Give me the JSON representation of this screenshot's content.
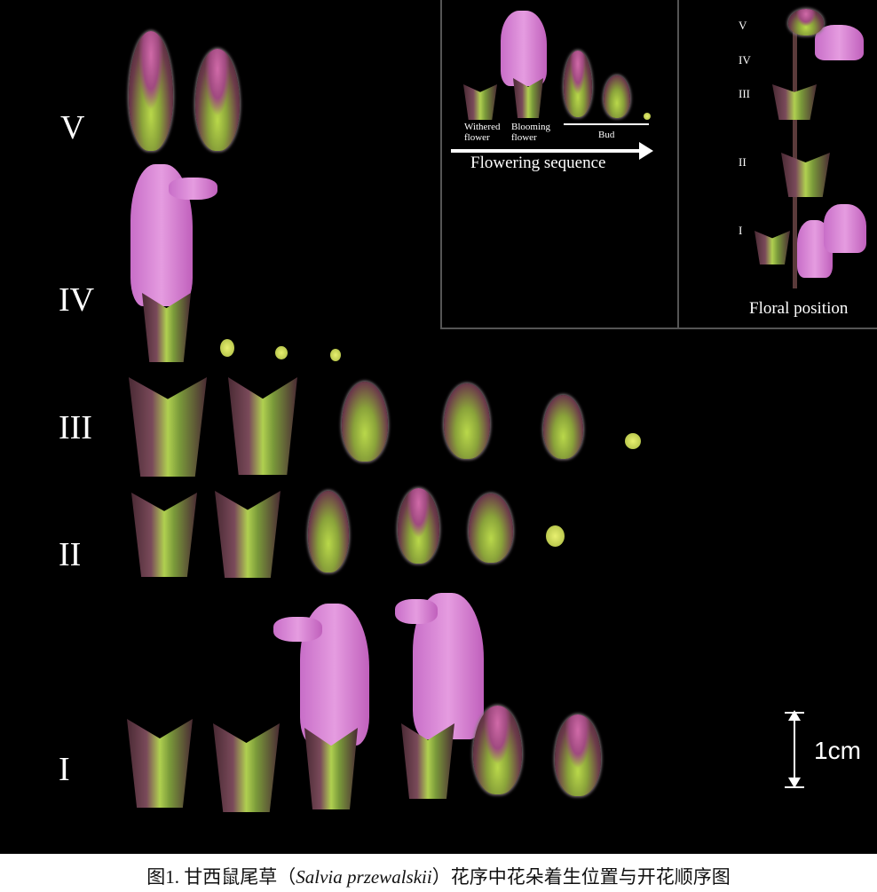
{
  "rows": {
    "V": "V",
    "IV": "IV",
    "III": "III",
    "II": "II",
    "I": "I"
  },
  "inset": {
    "withered": "Withered flower",
    "withered_l1": "Withered",
    "withered_l2": "flower",
    "blooming_l1": "Blooming",
    "blooming_l2": "flower",
    "bud": "Bud",
    "sequence": "Flowering sequence",
    "position_rows": {
      "V": "V",
      "IV": "IV",
      "III": "III",
      "II": "II",
      "I": "I"
    },
    "floral_position": "Floral position"
  },
  "scale_bar": {
    "label": "1cm"
  },
  "caption": {
    "prefix": "图1. 甘西鼠尾草（",
    "species": "Salvia przewalskii",
    "suffix": "）花序中花朵着生位置与开花顺序图"
  },
  "colors": {
    "background": "#000000",
    "petal": "#e59ce0",
    "calyx_green": "#b0d050",
    "calyx_purple": "#4a2a34"
  }
}
